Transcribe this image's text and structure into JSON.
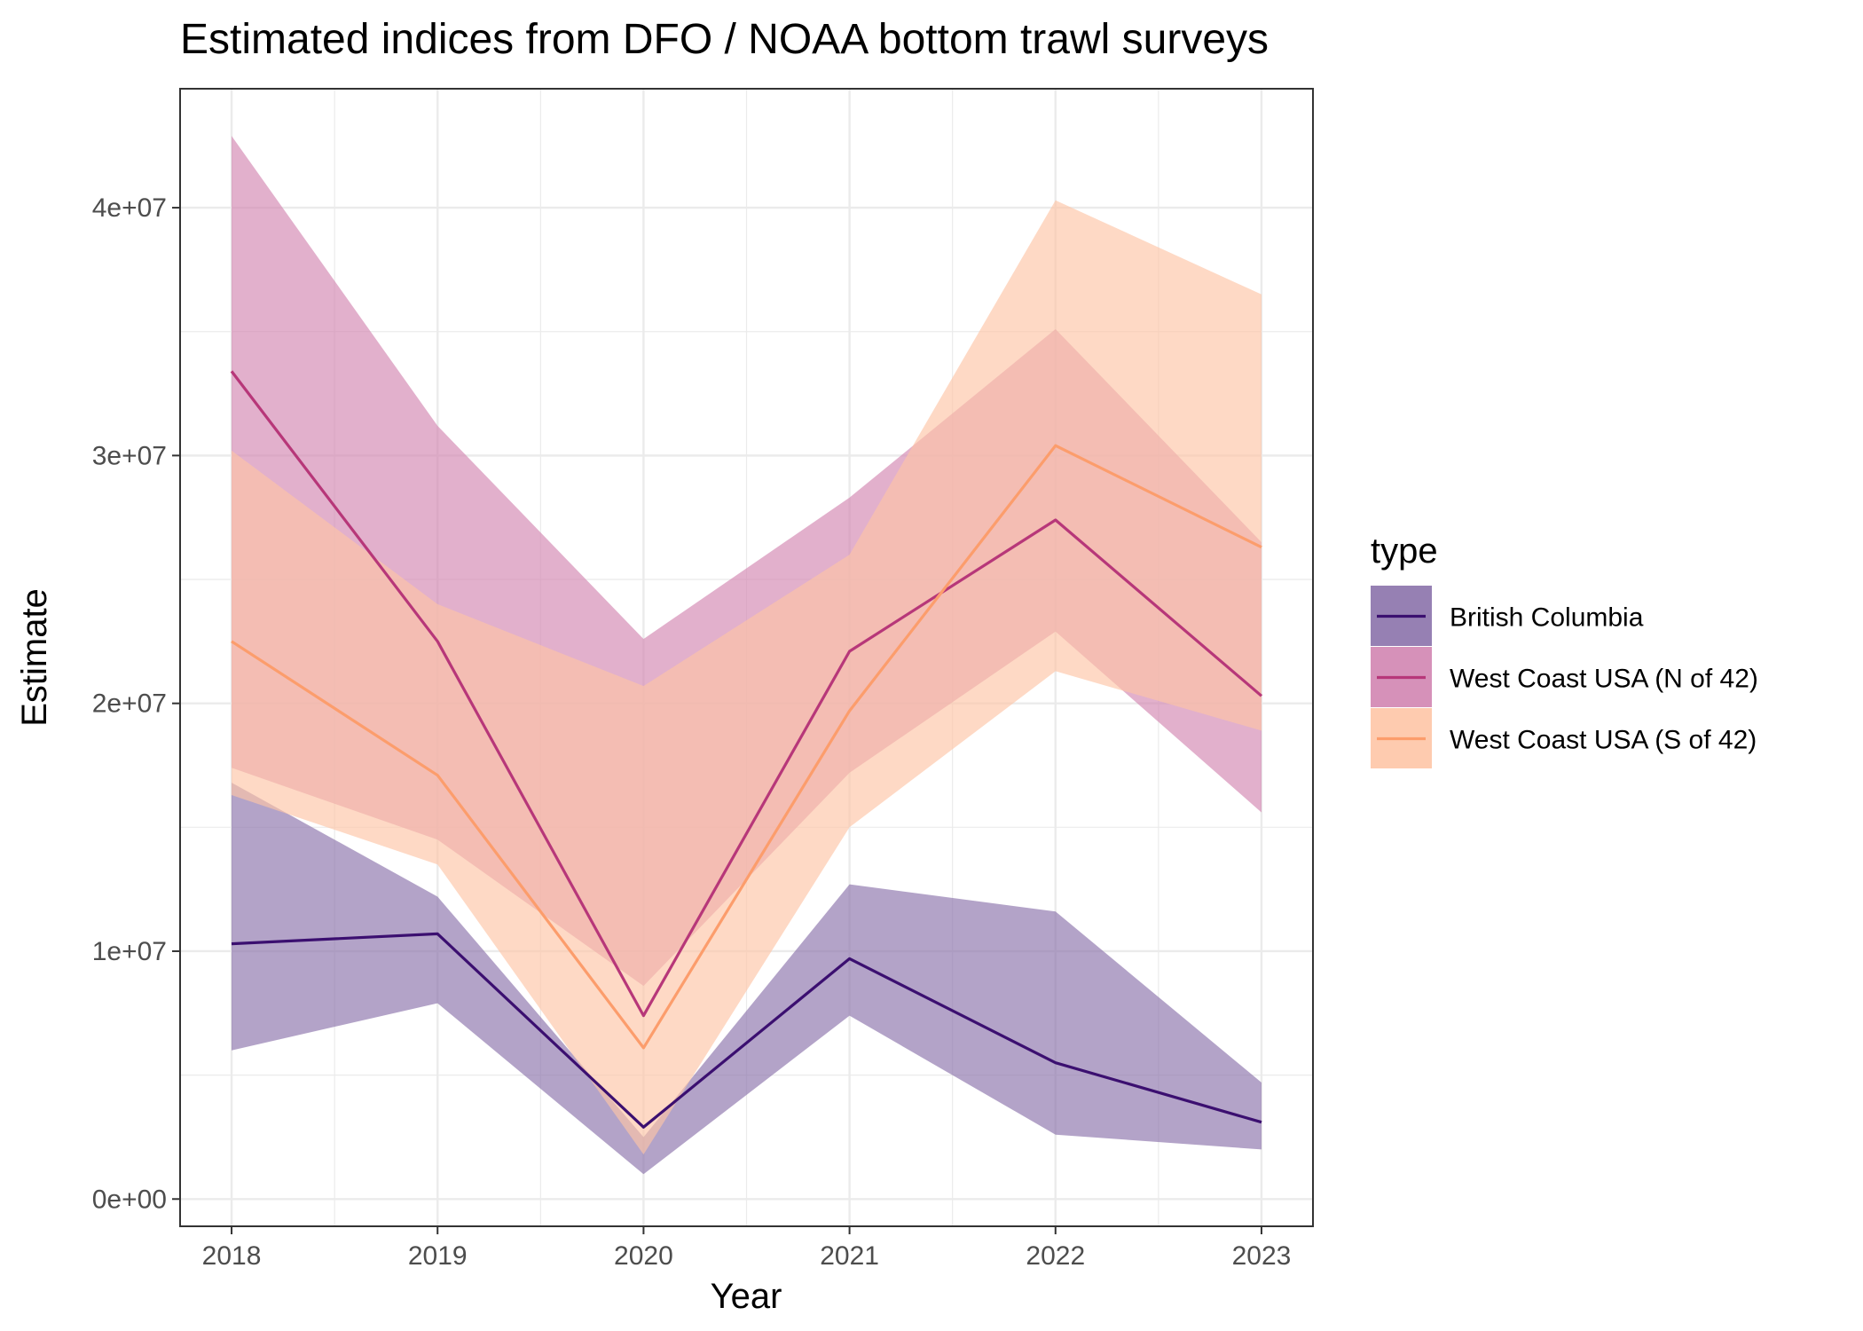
{
  "chart_data": {
    "type": "area",
    "title": "Estimated indices from DFO / NOAA bottom trawl surveys",
    "xlabel": "Year",
    "ylabel": "Estimate",
    "x": [
      2018,
      2019,
      2020,
      2021,
      2022,
      2023
    ],
    "xlim": [
      2017.75,
      2023.25
    ],
    "ylim": [
      -1100000,
      44800000
    ],
    "y_ticks": [
      0,
      10000000,
      20000000,
      30000000,
      40000000
    ],
    "y_tick_labels": [
      "0e+00",
      "1e+07",
      "2e+07",
      "3e+07",
      "4e+07"
    ],
    "x_tick_labels": [
      "2018",
      "2019",
      "2020",
      "2021",
      "2022",
      "2023"
    ],
    "grid": true,
    "legend": {
      "title": "type",
      "position": "right"
    },
    "series": [
      {
        "name": "British Columbia",
        "color": "#3b0f70",
        "fill": "#8b72ab",
        "estimate": [
          10300000,
          10700000,
          2900000,
          9700000,
          5500000,
          3100000
        ],
        "lower": [
          6000000,
          7900000,
          1000000,
          7400000,
          2600000,
          2000000
        ],
        "upper": [
          16800000,
          12200000,
          2500000,
          12700000,
          11600000,
          4700000
        ]
      },
      {
        "name": "West Coast USA (N of 42)",
        "color": "#b73779",
        "fill": "#d285b1",
        "estimate": [
          33400000,
          22500000,
          7400000,
          22100000,
          27400000,
          20300000
        ],
        "lower": [
          17400000,
          14500000,
          8600000,
          17200000,
          22900000,
          15600000
        ],
        "upper": [
          42900000,
          31200000,
          22600000,
          28300000,
          35100000,
          26500000
        ]
      },
      {
        "name": "West Coast USA (S of 42)",
        "color": "#fc9d6c",
        "fill": "#fec5a6",
        "estimate": [
          22500000,
          17100000,
          6100000,
          19700000,
          30400000,
          26300000
        ],
        "lower": [
          16300000,
          13500000,
          1800000,
          15000000,
          21300000,
          18900000
        ],
        "upper": [
          30200000,
          24000000,
          20700000,
          26000000,
          40300000,
          36500000
        ]
      }
    ]
  }
}
